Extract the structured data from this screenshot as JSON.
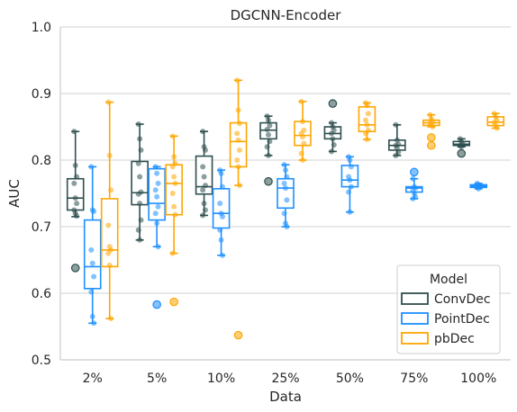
{
  "chart_data": {
    "type": "box",
    "title": "DGCNN-Encoder",
    "xlabel": "Data",
    "ylabel": "AUC",
    "ylim": [
      0.5,
      1.0
    ],
    "yticks": [
      "0.5",
      "0.6",
      "0.7",
      "0.8",
      "0.9",
      "1.0"
    ],
    "grid": "horizontal",
    "categories": [
      "2%",
      "5%",
      "10%",
      "25%",
      "50%",
      "75%",
      "100%"
    ],
    "legend": {
      "title": "Model",
      "position": "lower-right"
    },
    "series": [
      {
        "name": "ConvDec",
        "color": "#2f4f4f",
        "boxes": [
          {
            "q1": 0.725,
            "median": 0.743,
            "q3": 0.772,
            "whisker_low": 0.715,
            "whisker_high": 0.843,
            "outliers": [
              0.638
            ],
            "points": [
              0.843,
              0.792,
              0.775,
              0.765,
              0.743,
              0.735,
              0.725,
              0.72,
              0.716
            ]
          },
          {
            "q1": 0.733,
            "median": 0.751,
            "q3": 0.798,
            "whisker_low": 0.68,
            "whisker_high": 0.854,
            "outliers": [],
            "points": [
              0.854,
              0.832,
              0.815,
              0.795,
              0.775,
              0.752,
              0.749,
              0.735,
              0.71,
              0.695,
              0.68
            ]
          },
          {
            "q1": 0.749,
            "median": 0.76,
            "q3": 0.806,
            "whisker_low": 0.717,
            "whisker_high": 0.843,
            "outliers": [],
            "points": [
              0.843,
              0.82,
              0.815,
              0.79,
              0.775,
              0.762,
              0.755,
              0.735,
              0.725,
              0.717
            ]
          },
          {
            "q1": 0.832,
            "median": 0.845,
            "q3": 0.856,
            "whisker_low": 0.807,
            "whisker_high": 0.866,
            "outliers": [
              0.768
            ],
            "points": [
              0.866,
              0.86,
              0.852,
              0.846,
              0.838,
              0.828,
              0.82,
              0.807
            ]
          },
          {
            "q1": 0.832,
            "median": 0.84,
            "q3": 0.85,
            "whisker_low": 0.813,
            "whisker_high": 0.856,
            "outliers": [
              0.885
            ],
            "points": [
              0.856,
              0.85,
              0.845,
              0.84,
              0.832,
              0.823,
              0.813
            ]
          },
          {
            "q1": 0.815,
            "median": 0.822,
            "q3": 0.83,
            "whisker_low": 0.807,
            "whisker_high": 0.853,
            "outliers": [],
            "points": [
              0.853,
              0.83,
              0.824,
              0.822,
              0.818,
              0.812,
              0.807
            ]
          },
          {
            "q1": 0.822,
            "median": 0.824,
            "q3": 0.828,
            "whisker_low": 0.82,
            "whisker_high": 0.832,
            "outliers": [
              0.81
            ],
            "points": [
              0.832,
              0.828,
              0.825,
              0.822,
              0.82
            ]
          }
        ]
      },
      {
        "name": "PointDec",
        "color": "#1e90ff",
        "boxes": [
          {
            "q1": 0.607,
            "median": 0.64,
            "q3": 0.71,
            "whisker_low": 0.555,
            "whisker_high": 0.79,
            "outliers": [],
            "points": [
              0.79,
              0.725,
              0.723,
              0.665,
              0.645,
              0.625,
              0.602,
              0.565,
              0.555
            ]
          },
          {
            "q1": 0.71,
            "median": 0.735,
            "q3": 0.787,
            "whisker_low": 0.67,
            "whisker_high": 0.79,
            "outliers": [
              0.583
            ],
            "points": [
              0.79,
              0.78,
              0.765,
              0.755,
              0.745,
              0.73,
              0.72,
              0.705,
              0.67
            ]
          },
          {
            "q1": 0.698,
            "median": 0.72,
            "q3": 0.757,
            "whisker_low": 0.657,
            "whisker_high": 0.785,
            "outliers": [],
            "points": [
              0.785,
              0.78,
              0.76,
              0.735,
              0.72,
              0.715,
              0.695,
              0.68,
              0.657
            ]
          },
          {
            "q1": 0.728,
            "median": 0.758,
            "q3": 0.772,
            "whisker_low": 0.7,
            "whisker_high": 0.793,
            "outliers": [],
            "points": [
              0.793,
              0.785,
              0.775,
              0.765,
              0.758,
              0.74,
              0.72,
              0.705,
              0.7
            ]
          },
          {
            "q1": 0.76,
            "median": 0.77,
            "q3": 0.792,
            "whisker_low": 0.722,
            "whisker_high": 0.805,
            "outliers": [],
            "points": [
              0.805,
              0.8,
              0.79,
              0.775,
              0.77,
              0.76,
              0.752,
              0.722
            ]
          },
          {
            "q1": 0.752,
            "median": 0.758,
            "q3": 0.76,
            "whisker_low": 0.742,
            "whisker_high": 0.772,
            "outliers": [
              0.782
            ],
            "points": [
              0.772,
              0.76,
              0.758,
              0.755,
              0.75,
              0.745,
              0.742
            ]
          },
          {
            "q1": 0.759,
            "median": 0.761,
            "q3": 0.763,
            "whisker_low": 0.757,
            "whisker_high": 0.765,
            "outliers": [],
            "points": [
              0.765,
              0.763,
              0.761,
              0.759,
              0.757
            ]
          }
        ]
      },
      {
        "name": "pbDec",
        "color": "#ffa500",
        "boxes": [
          {
            "q1": 0.64,
            "median": 0.665,
            "q3": 0.742,
            "whisker_low": 0.562,
            "whisker_high": 0.887,
            "outliers": [],
            "points": [
              0.887,
              0.807,
              0.755,
              0.702,
              0.67,
              0.665,
              0.66,
              0.642,
              0.562
            ]
          },
          {
            "q1": 0.718,
            "median": 0.765,
            "q3": 0.793,
            "whisker_low": 0.66,
            "whisker_high": 0.836,
            "outliers": [
              0.587
            ],
            "points": [
              0.836,
              0.805,
              0.795,
              0.79,
              0.775,
              0.765,
              0.75,
              0.73,
              0.718,
              0.66
            ]
          },
          {
            "q1": 0.79,
            "median": 0.828,
            "q3": 0.856,
            "whisker_low": 0.762,
            "whisker_high": 0.92,
            "outliers": [
              0.537
            ],
            "points": [
              0.92,
              0.875,
              0.855,
              0.84,
              0.83,
              0.815,
              0.8,
              0.79,
              0.762
            ]
          },
          {
            "q1": 0.822,
            "median": 0.837,
            "q3": 0.858,
            "whisker_low": 0.8,
            "whisker_high": 0.888,
            "outliers": [],
            "points": [
              0.888,
              0.858,
              0.845,
              0.84,
              0.835,
              0.825,
              0.81,
              0.8
            ]
          },
          {
            "q1": 0.843,
            "median": 0.853,
            "q3": 0.88,
            "whisker_low": 0.831,
            "whisker_high": 0.886,
            "outliers": [],
            "points": [
              0.886,
              0.882,
              0.87,
              0.86,
              0.853,
              0.845,
              0.84,
              0.831
            ]
          },
          {
            "q1": 0.852,
            "median": 0.856,
            "q3": 0.86,
            "whisker_low": 0.85,
            "whisker_high": 0.868,
            "outliers": [
              0.834,
              0.822
            ],
            "points": [
              0.868,
              0.862,
              0.858,
              0.856,
              0.853,
              0.85
            ]
          },
          {
            "q1": 0.852,
            "median": 0.857,
            "q3": 0.865,
            "whisker_low": 0.848,
            "whisker_high": 0.87,
            "outliers": [],
            "points": [
              0.87,
              0.865,
              0.86,
              0.857,
              0.852,
              0.848
            ]
          }
        ]
      }
    ]
  }
}
